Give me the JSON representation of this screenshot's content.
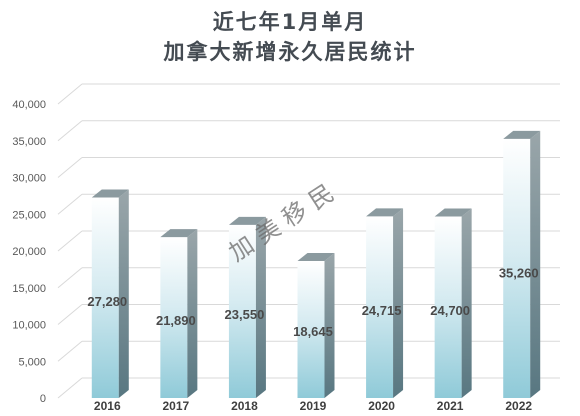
{
  "chart_data": {
    "type": "bar",
    "title": "近七年1月单月",
    "subtitle": "加拿大新增永久居民统计",
    "categories": [
      "2016",
      "2017",
      "2018",
      "2019",
      "2020",
      "2021",
      "2022"
    ],
    "values": [
      27280,
      21890,
      23550,
      18645,
      24715,
      24700,
      35260
    ],
    "value_labels": [
      "27,280",
      "21,890",
      "23,550",
      "18,645",
      "24,715",
      "24,700",
      "35,260"
    ],
    "ylim": [
      0,
      40000
    ],
    "yticks": [
      0,
      5000,
      10000,
      15000,
      20000,
      25000,
      30000,
      35000,
      40000
    ],
    "ytick_labels": [
      "0",
      "5,000",
      "10,000",
      "15,000",
      "20,000",
      "25,000",
      "30,000",
      "35,000",
      "40,000"
    ],
    "xlabel": "",
    "ylabel": "",
    "grid": true,
    "legend": "none",
    "colors": {
      "bar_top": "#ffffff",
      "bar_bottom": "#8fcad8",
      "bar_side": "#6f8a94",
      "bar_cap": "#8b9a9f",
      "grid": "#d9d9d9",
      "label": "#595959",
      "value_label": "#4a4a4a"
    }
  },
  "watermark": "加 美 移 民"
}
